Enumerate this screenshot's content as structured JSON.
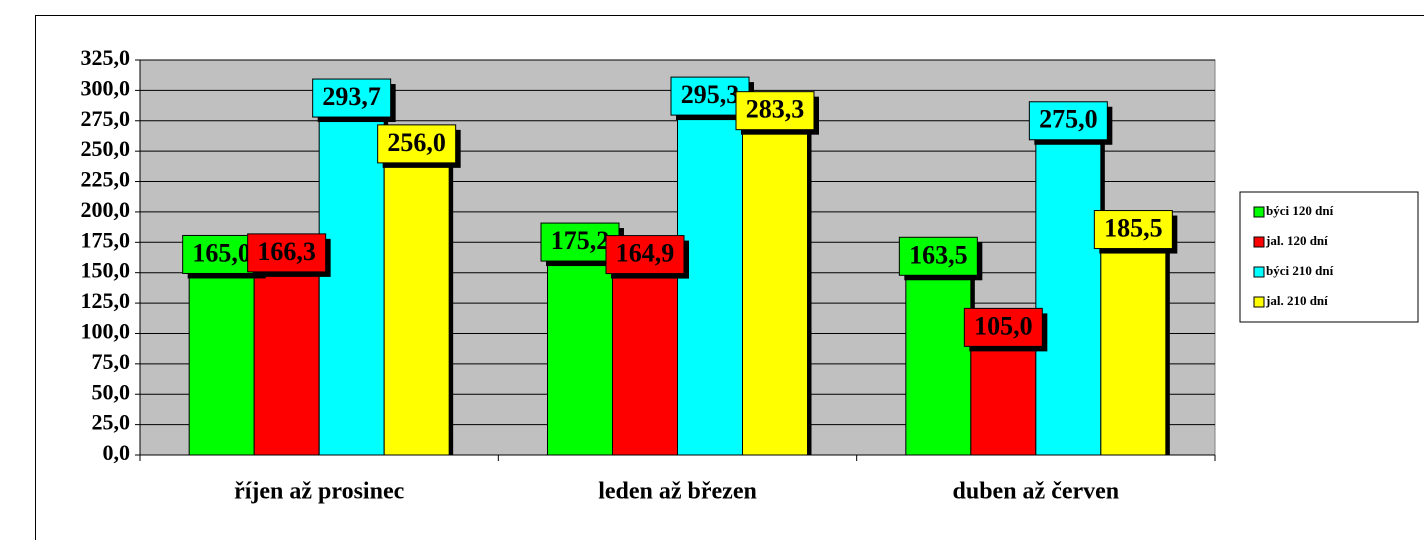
{
  "chart_data": {
    "type": "bar",
    "categories": [
      "říjen až prosinec",
      "leden až březen",
      "duben až červen"
    ],
    "series": [
      {
        "name": "býci 120 dní",
        "color": "#00ff00",
        "values": [
          165.0,
          175.2,
          163.5
        ],
        "value_labels": [
          "165,0",
          "175,2",
          "163,5"
        ]
      },
      {
        "name": "jal. 120 dní",
        "color": "#ff0000",
        "values": [
          166.3,
          164.9,
          105.0
        ],
        "value_labels": [
          "166,3",
          "164,9",
          "105,0"
        ]
      },
      {
        "name": "býci 210 dní",
        "color": "#00ffff",
        "values": [
          293.7,
          295.3,
          275.0
        ],
        "value_labels": [
          "293,7",
          "295,3",
          "275,0"
        ]
      },
      {
        "name": "jal. 210 dní",
        "color": "#ffff00",
        "values": [
          256.0,
          283.3,
          185.5
        ],
        "value_labels": [
          "256,0",
          "283,3",
          "185,5"
        ]
      }
    ],
    "ylim": [
      0,
      325
    ],
    "yticks": [
      {
        "value": 0,
        "label": "0,0"
      },
      {
        "value": 25,
        "label": "25,0"
      },
      {
        "value": 50,
        "label": "50,0"
      },
      {
        "value": 75,
        "label": "75,0"
      },
      {
        "value": 100,
        "label": "100,0"
      },
      {
        "value": 125,
        "label": "125,0"
      },
      {
        "value": 150,
        "label": "150,0"
      },
      {
        "value": 175,
        "label": "175,0"
      },
      {
        "value": 200,
        "label": "200,0"
      },
      {
        "value": 225,
        "label": "225,0"
      },
      {
        "value": 250,
        "label": "250,0"
      },
      {
        "value": 275,
        "label": "275,0"
      },
      {
        "value": 300,
        "label": "300,0"
      },
      {
        "value": 325,
        "label": "325,0"
      }
    ],
    "grid": true,
    "legend": "right",
    "plot_background": "#c0c0c0"
  }
}
